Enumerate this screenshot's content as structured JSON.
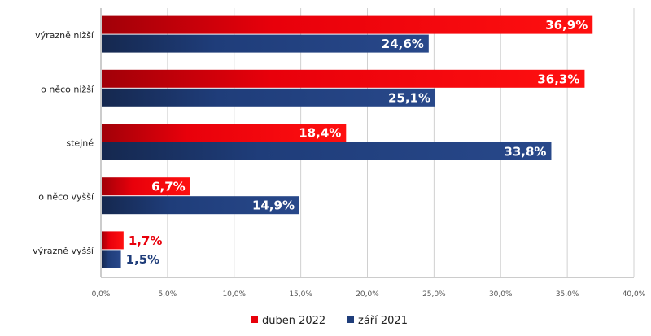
{
  "chart_data": {
    "type": "bar",
    "orientation": "horizontal",
    "categories": [
      "výrazně nižší",
      "o něco nižší",
      "stejné",
      "o něco vyšší",
      "výrazně vyšší"
    ],
    "series": [
      {
        "name": "duben 2022",
        "color": "#e8000b",
        "values": [
          36.9,
          36.3,
          18.4,
          6.7,
          1.7
        ],
        "value_labels": [
          "36,9%",
          "36,3%",
          "18,4%",
          "6,7%",
          "1,7%"
        ]
      },
      {
        "name": "září 2021",
        "color": "#1f3d7a",
        "values": [
          24.6,
          25.1,
          33.8,
          14.9,
          1.5
        ],
        "value_labels": [
          "24,6%",
          "25,1%",
          "33,8%",
          "14,9%",
          "1,5%"
        ]
      }
    ],
    "xlim": [
      0,
      40
    ],
    "xticks": [
      0,
      5,
      10,
      15,
      20,
      25,
      30,
      35,
      40
    ],
    "xtick_labels": [
      "0,0%",
      "5,0%",
      "10,0%",
      "15,0%",
      "20,0%",
      "25,0%",
      "30,0%",
      "35,0%",
      "40,0%"
    ],
    "grid": true,
    "legend_position": "bottom-center"
  }
}
